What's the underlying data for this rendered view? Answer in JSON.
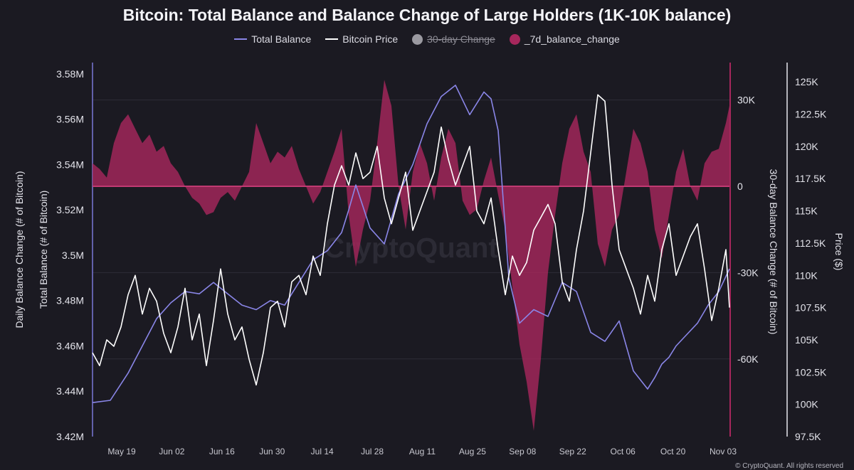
{
  "title": "Bitcoin: Total Balance and Balance Change of Large Holders (1K-10K balance)",
  "legend": [
    {
      "label": "Total Balance",
      "color": "#8a86e8",
      "kind": "line",
      "enabled": true
    },
    {
      "label": "Bitcoin Price",
      "color": "#ffffff",
      "kind": "line",
      "enabled": true
    },
    {
      "label": "30-day Change",
      "color": "#9b9aa1",
      "kind": "dot",
      "enabled": false
    },
    {
      "label": "_7d_balance_change",
      "color": "#a6275c",
      "kind": "dot",
      "enabled": true
    }
  ],
  "footer": "© CryptoQuant. All rights reserved",
  "watermark": "CryptoQuant",
  "chart_data": {
    "type": "line",
    "x_ticks": [
      "May 19",
      "Jun 02",
      "Jun 16",
      "Jun 30",
      "Jul 14",
      "Jul 28",
      "Aug 11",
      "Aug 25",
      "Sep 08",
      "Sep 22",
      "Oct 06",
      "Oct 20",
      "Nov 03"
    ],
    "x_start": "May 13",
    "x_end": "Nov 03",
    "axes": {
      "left_outer": {
        "label": "Daily Balance Change (# of Bitcoin)"
      },
      "left": {
        "label": "Total Balance (# of Bitcoin)",
        "ticks": [
          "3.42M",
          "3.44M",
          "3.46M",
          "3.48M",
          "3.5M",
          "3.52M",
          "3.54M",
          "3.56M",
          "3.58M"
        ],
        "range": [
          3420000,
          3585000
        ]
      },
      "right_inner": {
        "label": "30-day Balance Change (# of Bitcoin)",
        "ticks": [
          "30K",
          "0",
          "-30K",
          "-60K"
        ],
        "range": [
          -87000,
          43000
        ]
      },
      "right": {
        "label": "Price ($)",
        "ticks": [
          "97.5K",
          "100K",
          "102.5K",
          "105K",
          "107.5K",
          "110K",
          "112.5K",
          "115K",
          "117.5K",
          "120K",
          "122.5K",
          "125K"
        ],
        "range": [
          97500,
          126500
        ]
      }
    },
    "series": [
      {
        "name": "Total Balance",
        "color": "#8a86e8",
        "axis": "left",
        "x": [
          0,
          5,
          10,
          14,
          18,
          22,
          26,
          30,
          34,
          38,
          42,
          46,
          50,
          54,
          58,
          62,
          66,
          70,
          72,
          74,
          78,
          82,
          86,
          90,
          94,
          98,
          102,
          106,
          110,
          112,
          114,
          117,
          120,
          124,
          128,
          132,
          136,
          140,
          144,
          148,
          152,
          156,
          158,
          160,
          162,
          164,
          167,
          170,
          173,
          176,
          179
        ],
        "values": [
          3435000,
          3436000,
          3448000,
          3460000,
          3472000,
          3479000,
          3484000,
          3483000,
          3488000,
          3483000,
          3478000,
          3476000,
          3480000,
          3478000,
          3488000,
          3498000,
          3502000,
          3510000,
          3520000,
          3531000,
          3512000,
          3505000,
          3527000,
          3540000,
          3558000,
          3570000,
          3575000,
          3562000,
          3572000,
          3569000,
          3555000,
          3490000,
          3470000,
          3476000,
          3473000,
          3488000,
          3484000,
          3466000,
          3462000,
          3471000,
          3449000,
          3441000,
          3446000,
          3452000,
          3455000,
          3460000,
          3465000,
          3470000,
          3478000,
          3484000,
          3494000
        ]
      },
      {
        "name": "Bitcoin Price",
        "color": "#ffffff",
        "axis": "right",
        "x": [
          0,
          2,
          4,
          6,
          8,
          10,
          12,
          14,
          16,
          18,
          20,
          22,
          24,
          26,
          28,
          30,
          32,
          34,
          36,
          38,
          40,
          42,
          44,
          46,
          48,
          50,
          52,
          54,
          56,
          58,
          60,
          62,
          64,
          66,
          68,
          70,
          72,
          74,
          76,
          78,
          80,
          82,
          84,
          86,
          88,
          90,
          92,
          94,
          96,
          98,
          100,
          102,
          104,
          106,
          108,
          110,
          112,
          114,
          116,
          118,
          120,
          122,
          124,
          126,
          128,
          130,
          132,
          134,
          136,
          138,
          140,
          142,
          144,
          146,
          148,
          150,
          152,
          154,
          156,
          158,
          160,
          162,
          164,
          166,
          168,
          170,
          172,
          174,
          176,
          178,
          179
        ],
        "values": [
          104000,
          103000,
          105000,
          104500,
          106000,
          108500,
          110000,
          107000,
          109000,
          108000,
          105500,
          104000,
          106000,
          109000,
          105000,
          107000,
          103000,
          106500,
          110500,
          107000,
          105000,
          106000,
          103500,
          101500,
          104000,
          107500,
          108000,
          106000,
          109500,
          110000,
          108500,
          111500,
          110000,
          114000,
          117000,
          118500,
          117000,
          119500,
          117500,
          118000,
          120000,
          116000,
          114000,
          116000,
          118000,
          113500,
          115000,
          116500,
          118000,
          121500,
          119000,
          117000,
          118500,
          120000,
          115000,
          114000,
          116000,
          112000,
          108500,
          111500,
          110000,
          111000,
          113500,
          114500,
          115500,
          114000,
          109500,
          108000,
          112000,
          115000,
          119500,
          124000,
          123500,
          117000,
          112000,
          110500,
          109000,
          107000,
          110000,
          108000,
          112000,
          114000,
          110000,
          111500,
          113000,
          114000,
          110500,
          106500,
          109000,
          112000,
          107500
        ]
      },
      {
        "name": "_7d_balance_change",
        "color": "#a6275c",
        "axis": "right_inner",
        "type": "area",
        "x": [
          0,
          2,
          4,
          6,
          8,
          10,
          12,
          14,
          16,
          18,
          20,
          22,
          24,
          26,
          28,
          30,
          32,
          34,
          36,
          38,
          40,
          42,
          44,
          46,
          48,
          50,
          52,
          54,
          56,
          58,
          60,
          62,
          64,
          66,
          68,
          70,
          72,
          74,
          76,
          78,
          80,
          82,
          84,
          86,
          88,
          90,
          92,
          94,
          96,
          98,
          100,
          102,
          104,
          106,
          108,
          110,
          112,
          114,
          116,
          118,
          120,
          122,
          124,
          126,
          128,
          130,
          132,
          134,
          136,
          138,
          140,
          142,
          144,
          146,
          148,
          150,
          152,
          154,
          156,
          158,
          160,
          162,
          164,
          166,
          168,
          170,
          172,
          174,
          176,
          178,
          179
        ],
        "values": [
          8000,
          6000,
          3000,
          15000,
          22000,
          25000,
          20000,
          15000,
          18000,
          12000,
          14000,
          8000,
          5000,
          0,
          -4000,
          -6000,
          -10000,
          -9000,
          -4000,
          -2000,
          -5000,
          0,
          5000,
          22000,
          15000,
          8000,
          12000,
          10000,
          14000,
          6000,
          0,
          -6000,
          -2000,
          5000,
          12000,
          20000,
          -10000,
          -28000,
          -15000,
          -5000,
          15000,
          37000,
          28000,
          0,
          -15000,
          5000,
          15000,
          8000,
          -5000,
          10000,
          20000,
          15000,
          -5000,
          -10000,
          -8000,
          2000,
          10000,
          -3000,
          -15000,
          -35000,
          -55000,
          -68000,
          -85000,
          -60000,
          -30000,
          -10000,
          8000,
          20000,
          25000,
          12000,
          5000,
          -20000,
          -28000,
          -15000,
          -10000,
          5000,
          20000,
          15000,
          5000,
          -15000,
          -25000,
          -10000,
          5000,
          13000,
          0,
          -5000,
          8000,
          12000,
          13000,
          22000,
          28000
        ]
      }
    ]
  }
}
